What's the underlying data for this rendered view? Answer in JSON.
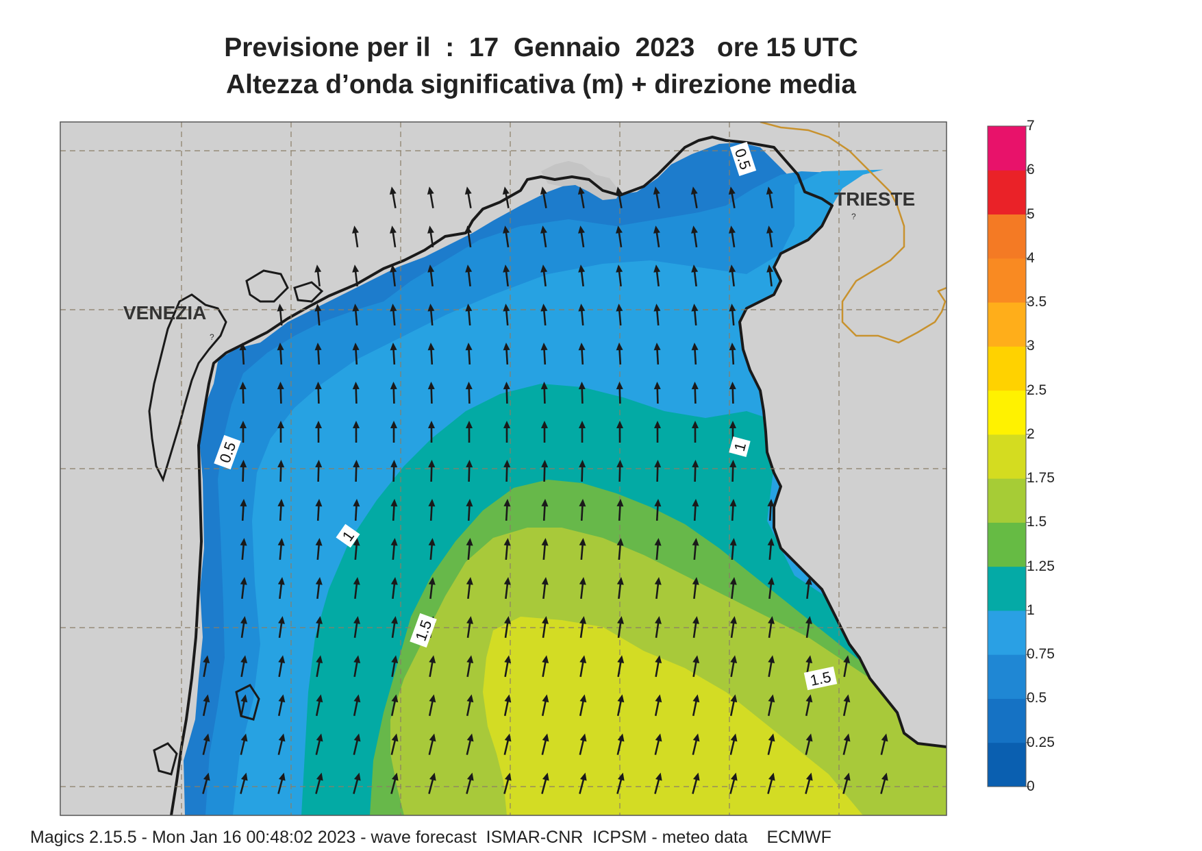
{
  "header": {
    "title_line1": "Previsione per il  :  17  Gennaio  2023   ore 15 UTC",
    "title_line2": "Altezza d’onda significativa (m) + direzione media"
  },
  "places": [
    {
      "id": "venezia",
      "label": "VENEZIA"
    },
    {
      "id": "trieste",
      "label": "TRIESTE"
    }
  ],
  "contour_labels": [
    "0.5",
    "0.5",
    "1",
    "1",
    "1.5",
    "1.5"
  ],
  "colorbar": {
    "ticks": [
      "0",
      "0.25",
      "0.5",
      "0.75",
      "1",
      "1.25",
      "1.5",
      "1.75",
      "2",
      "2.5",
      "3",
      "3.5",
      "4",
      "5",
      "6",
      "7"
    ],
    "colors": [
      "#0a5fb0",
      "#1572c4",
      "#1f87d4",
      "#2aa0e4",
      "#04aaa6",
      "#66bb44",
      "#a6cc36",
      "#d4dc20",
      "#fff200",
      "#ffd200",
      "#ffae1a",
      "#f98a22",
      "#f47a24",
      "#ea2228",
      "#e8126a"
    ]
  },
  "colors": {
    "land": "#d0d0d0",
    "sea_025_05": "#1d7ccc",
    "sea_05_075": "#1f8ed8",
    "sea_075_1": "#27a2e2",
    "sea_1_125": "#03aaa4",
    "sea_125_15": "#67b84a",
    "sea_15_175": "#a8c93a",
    "sea_175_2": "#d3dc24",
    "coast": "#1a1a1a",
    "border": "#c8922e",
    "grid": "#8a7e66",
    "arrow": "#1a1a1a"
  },
  "footer": "Magics 2.15.5 - Mon Jan 16 00:48:02 2023 - wave forecast  ISMAR-CNR  ICPSM - meteo data    ECMWF"
}
